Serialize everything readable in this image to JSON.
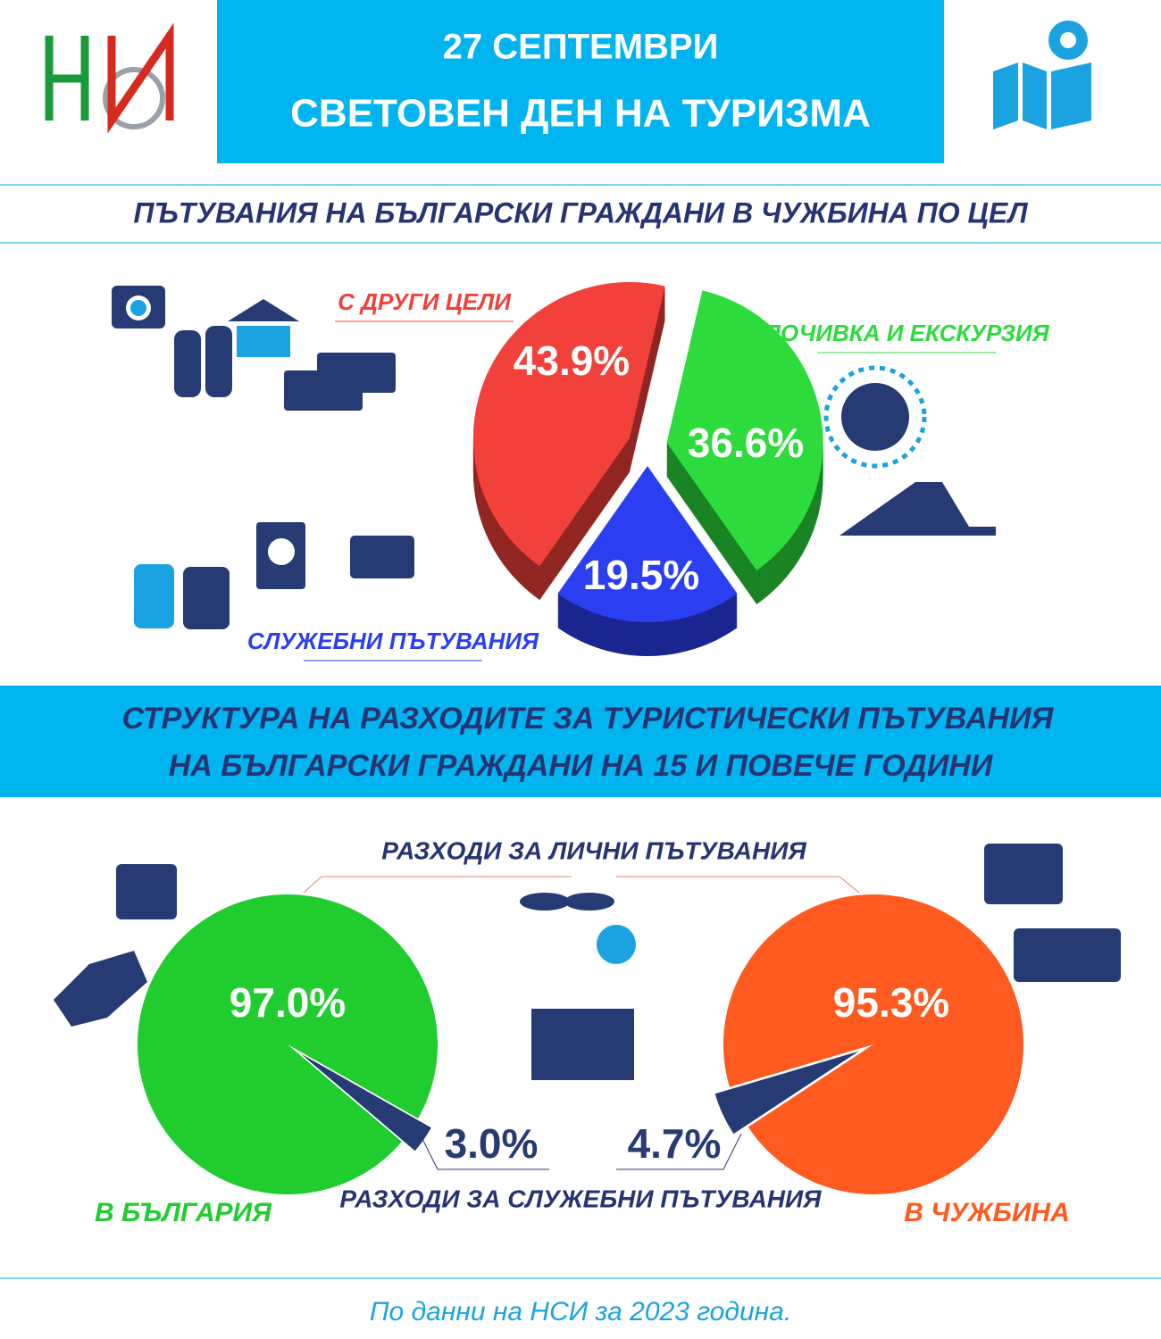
{
  "header": {
    "title_lines": [
      "27 СЕПТЕМВРИ",
      "СВЕТОВЕН ДЕН НА ТУРИЗМА"
    ]
  },
  "section_title": [
    "СТРУКТУРА НА РАЗХОДИТЕ ЗА ТУРИСТИЧЕСКИ ПЪТУВАНИЯ",
    "НА БЪЛГАРСКИ ГРАЖДАНИ НА 15 И ПОВЕЧЕ ГОДИНИ"
  ],
  "expense_legend": [
    "РАЗХОДИ ЗА ЛИЧНИ ПЪТУВАНИЯ",
    "РАЗХОДИ ЗА СЛУЖЕБНИ ПЪТУВАНИЯ"
  ],
  "chart_data": [
    {
      "type": "pie3d",
      "title": "ПЪТУВАНИЯ НА БЪЛГАРСКИ ГРАЖДАНИ В ЧУЖБИНА ПО ЦЕЛ",
      "categories": [
        "С ДРУГИ ЦЕЛИ",
        "ПОЧИВКА И ЕКСКУРЗИЯ",
        "СЛУЖЕБНИ ПЪТУВАНИЯ"
      ],
      "values": [
        43.9,
        36.6,
        19.5
      ],
      "value_labels": [
        "43.9%",
        "36.6%",
        "19.5%"
      ],
      "colors": [
        "#f2403a",
        "#2ddc3c",
        "#2c3ff0"
      ]
    },
    {
      "type": "pie",
      "title": "В БЪЛГАРИЯ",
      "values": [
        97.0,
        3.0
      ],
      "value_labels": [
        "97.0%",
        "3.0%"
      ],
      "colors": [
        "#21cc2f",
        "#263a73"
      ]
    },
    {
      "type": "pie",
      "title": "В ЧУЖБИНА",
      "values": [
        95.3,
        4.7
      ],
      "value_labels": [
        "95.3%",
        "4.7%"
      ],
      "colors": [
        "#ff5a1f",
        "#263a73"
      ]
    }
  ],
  "footer": "По данни на НСИ  за  2023 година."
}
